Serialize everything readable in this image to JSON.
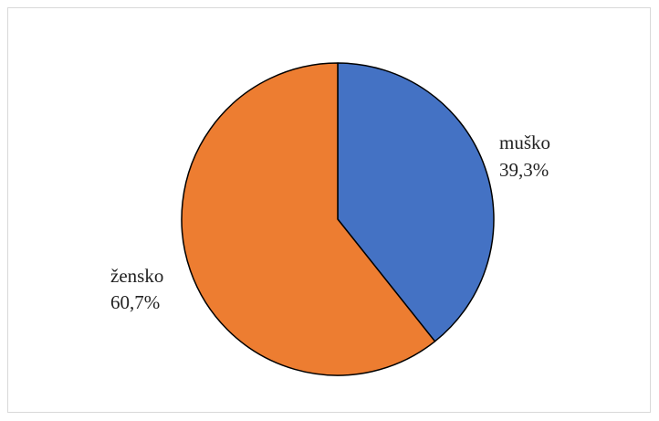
{
  "chart_data": {
    "type": "pie",
    "categories": [
      "muško",
      "žensko"
    ],
    "values": [
      39.3,
      60.7
    ],
    "value_labels": [
      "39,3%",
      "60,7%"
    ],
    "colors": [
      "#4472C4",
      "#ED7D31"
    ],
    "start_angle_deg": 0,
    "direction": "clockwise",
    "legend": "none",
    "title": ""
  }
}
